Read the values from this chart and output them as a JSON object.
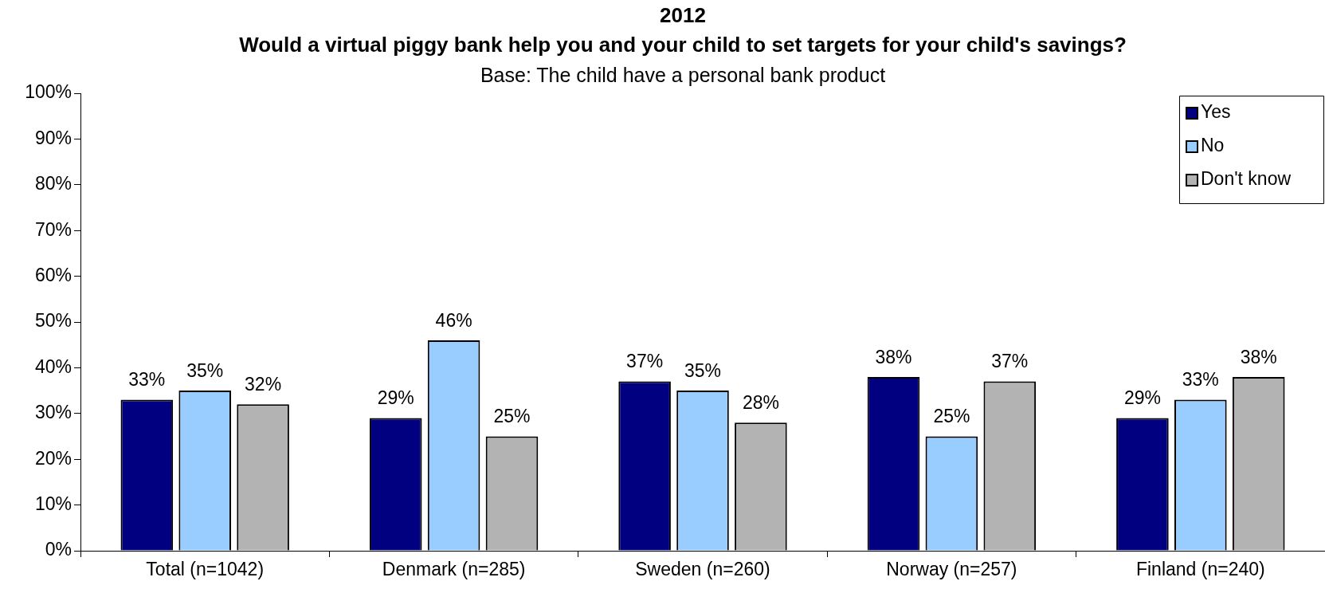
{
  "chart_data": {
    "type": "bar",
    "title": "2012",
    "subtitle": "Would a virtual piggy bank help you and your child to set targets for your child's savings?",
    "annotations": [
      "Base: The child have a personal bank product"
    ],
    "categories": [
      "Total (n=1042)",
      "Denmark (n=285)",
      "Sweden (n=260)",
      "Norway (n=257)",
      "Finland (n=240)"
    ],
    "series": [
      {
        "name": "Yes",
        "color": "#000080",
        "values": [
          33,
          29,
          37,
          38,
          29
        ],
        "value_labels": [
          "33%",
          "29%",
          "37%",
          "38%",
          "29%"
        ]
      },
      {
        "name": "No",
        "color": "#99ccff",
        "values": [
          35,
          46,
          35,
          25,
          33
        ],
        "value_labels": [
          "35%",
          "46%",
          "35%",
          "25%",
          "33%"
        ]
      },
      {
        "name": "Don't know",
        "color": "#b3b3b3",
        "values": [
          32,
          25,
          28,
          37,
          38
        ],
        "value_labels": [
          "32%",
          "25%",
          "28%",
          "37%",
          "38%"
        ]
      }
    ],
    "ylim": [
      0,
      100
    ],
    "yticks": [
      {
        "value": 0,
        "label": "0%"
      },
      {
        "value": 10,
        "label": "10%"
      },
      {
        "value": 20,
        "label": "20%"
      },
      {
        "value": 30,
        "label": "30%"
      },
      {
        "value": 40,
        "label": "40%"
      },
      {
        "value": 50,
        "label": "50%"
      },
      {
        "value": 60,
        "label": "60%"
      },
      {
        "value": 70,
        "label": "70%"
      },
      {
        "value": 80,
        "label": "80%"
      },
      {
        "value": 90,
        "label": "90%"
      },
      {
        "value": 100,
        "label": "100%"
      }
    ],
    "grid": false,
    "legend": "top right"
  }
}
